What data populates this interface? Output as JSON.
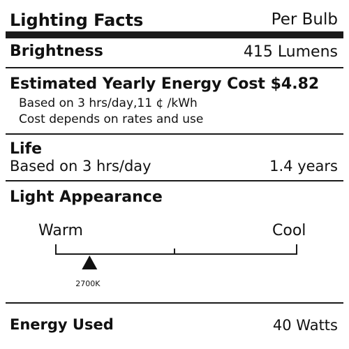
{
  "header": {
    "title": "Lighting Facts",
    "per_bulb": "Per Bulb"
  },
  "brightness": {
    "label": "Brightness",
    "value": "415 Lumens"
  },
  "energy_cost": {
    "heading": "Estimated Yearly Energy Cost $4.82",
    "basis": "Based on 3 hrs/day,11 ¢ /kWh",
    "note": "Cost depends on rates and use"
  },
  "life": {
    "label": "Life",
    "basis": "Based on 3 hrs/day",
    "value": "1.4 years"
  },
  "light_appearance": {
    "heading": "Light Appearance",
    "warm_label": "Warm",
    "cool_label": "Cool",
    "marker_label": "2700K",
    "marker_position_fraction": 0.14
  },
  "energy_used": {
    "label": "Energy Used",
    "value": "40 Watts"
  }
}
